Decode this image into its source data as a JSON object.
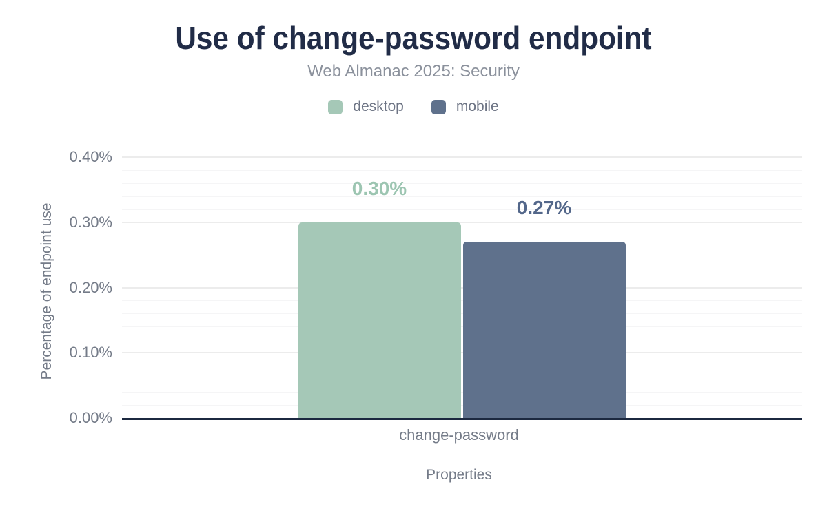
{
  "chart_data": {
    "type": "bar",
    "title": "Use of change-password endpoint",
    "subtitle": "Web Almanac 2025: Security",
    "xlabel": "Properties",
    "ylabel": "Percentage of endpoint use",
    "categories": [
      "change-password"
    ],
    "series": [
      {
        "name": "desktop",
        "values": [
          0.3
        ],
        "display_values": [
          "0.30%"
        ],
        "color": "#a5c8b7",
        "label_color": "#9cc5b1"
      },
      {
        "name": "mobile",
        "values": [
          0.27
        ],
        "display_values": [
          "0.27%"
        ],
        "color": "#5f718c",
        "label_color": "#53678a"
      }
    ],
    "ylim": [
      0,
      0.4
    ],
    "yticks": [
      {
        "value": 0.0,
        "label": "0.00%"
      },
      {
        "value": 0.1,
        "label": "0.10%"
      },
      {
        "value": 0.2,
        "label": "0.20%"
      },
      {
        "value": 0.3,
        "label": "0.30%"
      },
      {
        "value": 0.4,
        "label": "0.40%"
      }
    ],
    "y_minor_step": 0.02,
    "grid": true,
    "legend_position": "top",
    "colors": {
      "background": "#ffffff",
      "title": "#212c47",
      "subtitle_text": "#8b919c",
      "tick_text": "#747b88",
      "legend_text": "#6e7585",
      "axis_line": "#1c2940",
      "grid_major": "#ececec",
      "grid_minor": "#f5f5f6"
    }
  }
}
